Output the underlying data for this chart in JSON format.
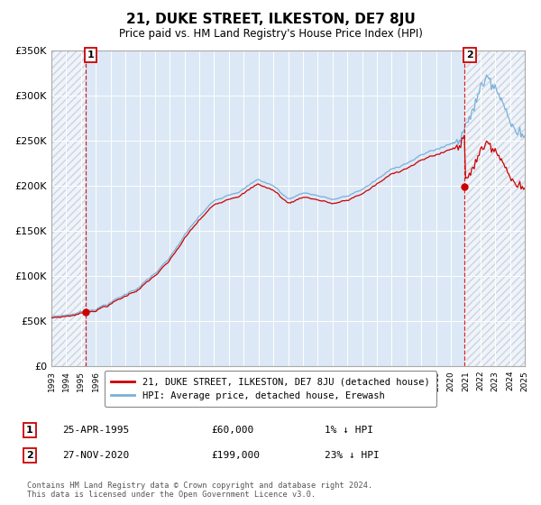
{
  "title": "21, DUKE STREET, ILKESTON, DE7 8JU",
  "subtitle": "Price paid vs. HM Land Registry's House Price Index (HPI)",
  "sale1_label": "25-APR-1995",
  "sale1_price_label": "£60,000",
  "sale1_hpi": "1% ↓ HPI",
  "sale2_label": "27-NOV-2020",
  "sale2_price_label": "£199,000",
  "sale2_hpi": "23% ↓ HPI",
  "legend_line1": "21, DUKE STREET, ILKESTON, DE7 8JU (detached house)",
  "legend_line2": "HPI: Average price, detached house, Erewash",
  "footer": "Contains HM Land Registry data © Crown copyright and database right 2024.\nThis data is licensed under the Open Government Licence v3.0.",
  "hpi_line_color": "#7ab0d8",
  "sale_line_color": "#cc0000",
  "sale_dot_color": "#cc0000",
  "annotation_box_color": "#cc0000",
  "plot_bg": "#dce8f5",
  "grid_color": "#ffffff",
  "xmin": 1993,
  "xmax": 2025,
  "ymin": 0,
  "ymax": 350000,
  "sale1_year_f": 1995.3055,
  "sale1_price": 60000,
  "sale2_year_f": 2020.9167,
  "sale2_price": 199000
}
